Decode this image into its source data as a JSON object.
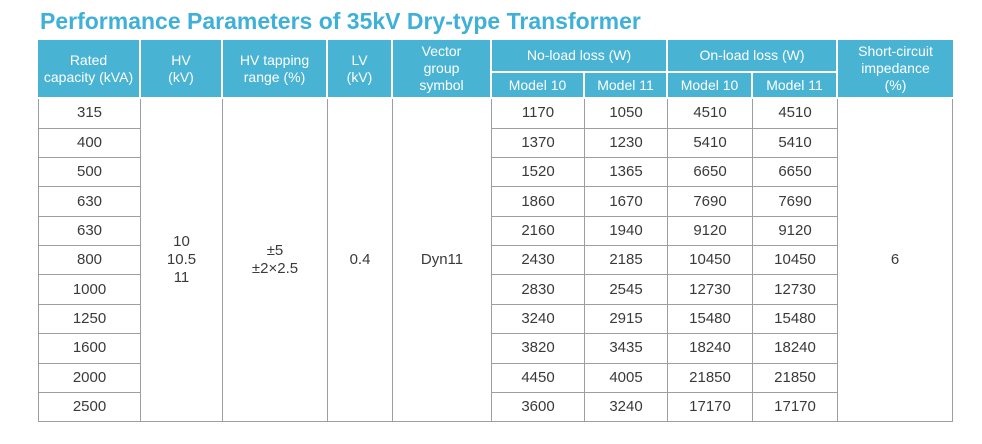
{
  "title": "Performance Parameters of 35kV Dry-type Transformer",
  "colors": {
    "accent_header": "#49b3d4",
    "title_text": "#3fb0d8",
    "grid_border": "#9e9e9e",
    "header_text": "#ffffff",
    "body_text": "#3a3a3a"
  },
  "table": {
    "headers": {
      "rated_capacity": "Rated\ncapacity (kVA)",
      "hv": "HV\n(kV)",
      "hv_tapping": "HV tapping\nrange (%)",
      "lv": "LV\n(kV)",
      "vector_group": "Vector\ngroup\nsymbol",
      "no_load_loss": "No-load loss (W)",
      "on_load_loss": "On-load loss (W)",
      "model10": "Model 10",
      "model11": "Model 11",
      "short_circuit_impedance": "Short-circuit\nimpedance\n(%)"
    },
    "merged": {
      "hv_values": "10\n10.5\n11",
      "hv_tapping_values": "±5\n±2×2.5",
      "lv_value": "0.4",
      "vector_group_value": "Dyn11",
      "short_circuit_impedance_value": "6"
    },
    "rows": [
      {
        "capacity": "315",
        "noload_m10": "1170",
        "noload_m11": "1050",
        "onload_m10": "4510",
        "onload_m11": "4510"
      },
      {
        "capacity": "400",
        "noload_m10": "1370",
        "noload_m11": "1230",
        "onload_m10": "5410",
        "onload_m11": "5410"
      },
      {
        "capacity": "500",
        "noload_m10": "1520",
        "noload_m11": "1365",
        "onload_m10": "6650",
        "onload_m11": "6650"
      },
      {
        "capacity": "630",
        "noload_m10": "1860",
        "noload_m11": "1670",
        "onload_m10": "7690",
        "onload_m11": "7690"
      },
      {
        "capacity": "630",
        "noload_m10": "2160",
        "noload_m11": "1940",
        "onload_m10": "9120",
        "onload_m11": "9120"
      },
      {
        "capacity": "800",
        "noload_m10": "2430",
        "noload_m11": "2185",
        "onload_m10": "10450",
        "onload_m11": "10450"
      },
      {
        "capacity": "1000",
        "noload_m10": "2830",
        "noload_m11": "2545",
        "onload_m10": "12730",
        "onload_m11": "12730"
      },
      {
        "capacity": "1250",
        "noload_m10": "3240",
        "noload_m11": "2915",
        "onload_m10": "15480",
        "onload_m11": "15480"
      },
      {
        "capacity": "1600",
        "noload_m10": "3820",
        "noload_m11": "3435",
        "onload_m10": "18240",
        "onload_m11": "18240"
      },
      {
        "capacity": "2000",
        "noload_m10": "4450",
        "noload_m11": "4005",
        "onload_m10": "21850",
        "onload_m11": "21850"
      },
      {
        "capacity": "2500",
        "noload_m10": "3600",
        "noload_m11": "3240",
        "onload_m10": "17170",
        "onload_m11": "17170"
      }
    ]
  }
}
